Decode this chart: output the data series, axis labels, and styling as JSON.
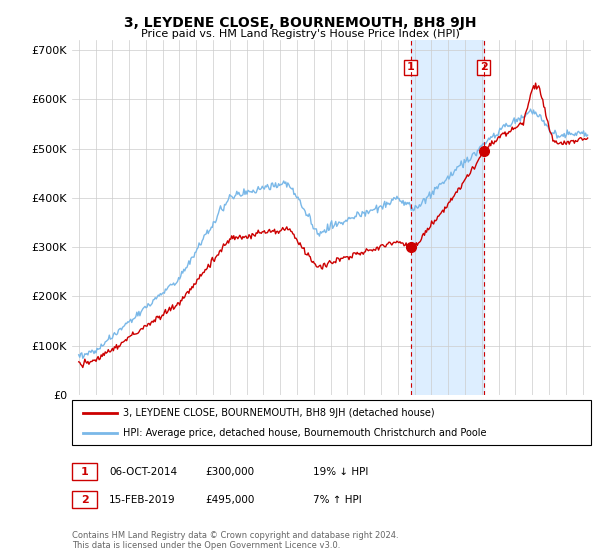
{
  "title": "3, LEYDENE CLOSE, BOURNEMOUTH, BH8 9JH",
  "subtitle": "Price paid vs. HM Land Registry's House Price Index (HPI)",
  "ylim": [
    0,
    720000
  ],
  "yticks": [
    0,
    100000,
    200000,
    300000,
    400000,
    500000,
    600000,
    700000
  ],
  "ytick_labels": [
    "£0",
    "£100K",
    "£200K",
    "£300K",
    "£400K",
    "£500K",
    "£600K",
    "£700K"
  ],
  "hpi_color": "#7ab8e8",
  "price_color": "#cc0000",
  "sale1_year": 2014.76,
  "sale1_price": 300000,
  "sale1_label": "1",
  "sale1_date": "06-OCT-2014",
  "sale1_pct": "19% ↓ HPI",
  "sale2_year": 2019.12,
  "sale2_price": 495000,
  "sale2_label": "2",
  "sale2_date": "15-FEB-2019",
  "sale2_pct": "7% ↑ HPI",
  "legend_house": "3, LEYDENE CLOSE, BOURNEMOUTH, BH8 9JH (detached house)",
  "legend_hpi": "HPI: Average price, detached house, Bournemouth Christchurch and Poole",
  "footer1": "Contains HM Land Registry data © Crown copyright and database right 2024.",
  "footer2": "This data is licensed under the Open Government Licence v3.0.",
  "background_color": "#ffffff",
  "grid_color": "#cccccc",
  "shaded_color": "#ddeeff",
  "xlim_left": 1994.6,
  "xlim_right": 2025.5
}
